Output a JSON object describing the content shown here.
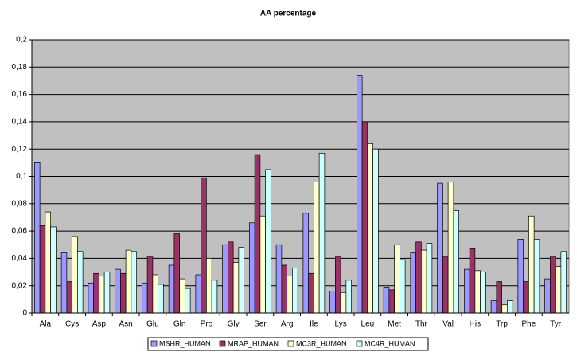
{
  "chart_data": {
    "type": "bar",
    "title": "AA percentage",
    "categories": [
      "Ala",
      "Cys",
      "Asp",
      "Asn",
      "Glu",
      "Gln",
      "Pro",
      "Gly",
      "Ser",
      "Arg",
      "Ile",
      "Lys",
      "Leu",
      "Met",
      "Thr",
      "Val",
      "His",
      "Trp",
      "Phe",
      "Tyr"
    ],
    "series": [
      {
        "name": "MSHR_HUMAN",
        "color": "#9999ff",
        "values": [
          0.11,
          0.044,
          0.022,
          0.032,
          0.022,
          0.035,
          0.028,
          0.05,
          0.066,
          0.05,
          0.073,
          0.016,
          0.174,
          0.019,
          0.044,
          0.095,
          0.032,
          0.009,
          0.054,
          0.025
        ]
      },
      {
        "name": "MRAP_HUMAN",
        "color": "#993366",
        "values": [
          0.064,
          0.023,
          0.029,
          0.029,
          0.041,
          0.058,
          0.099,
          0.052,
          0.116,
          0.035,
          0.029,
          0.041,
          0.14,
          0.017,
          0.052,
          0.041,
          0.047,
          0.023,
          0.023,
          0.041
        ]
      },
      {
        "name": "MC3R_HUMAN",
        "color": "#ffffcc",
        "values": [
          0.074,
          0.056,
          0.027,
          0.046,
          0.028,
          0.025,
          0.04,
          0.037,
          0.071,
          0.027,
          0.096,
          0.015,
          0.124,
          0.05,
          0.046,
          0.096,
          0.031,
          0.006,
          0.071,
          0.034
        ]
      },
      {
        "name": "MC4R_HUMAN",
        "color": "#ccffff",
        "values": [
          0.063,
          0.045,
          0.03,
          0.045,
          0.021,
          0.018,
          0.024,
          0.048,
          0.105,
          0.033,
          0.117,
          0.024,
          0.12,
          0.039,
          0.051,
          0.075,
          0.03,
          0.009,
          0.054,
          0.045
        ]
      }
    ],
    "ylim": [
      0,
      0.2
    ],
    "yticks": [
      0,
      {
        "value": 0.02,
        "label": "0,02"
      },
      {
        "value": 0.04,
        "label": "0,04"
      },
      {
        "value": 0.06,
        "label": "0,06"
      },
      {
        "value": 0.08,
        "label": "0,08"
      },
      {
        "value": 0.1,
        "label": "0,1"
      },
      {
        "value": 0.12,
        "label": "0,12"
      },
      {
        "value": 0.14,
        "label": "0,14"
      },
      {
        "value": 0.16,
        "label": "0,16"
      },
      {
        "value": 0.18,
        "label": "0,18"
      },
      {
        "value": 0.2,
        "label": "0,2"
      }
    ],
    "grid": true,
    "legend": "bottom",
    "background": "#c0c0c0"
  }
}
